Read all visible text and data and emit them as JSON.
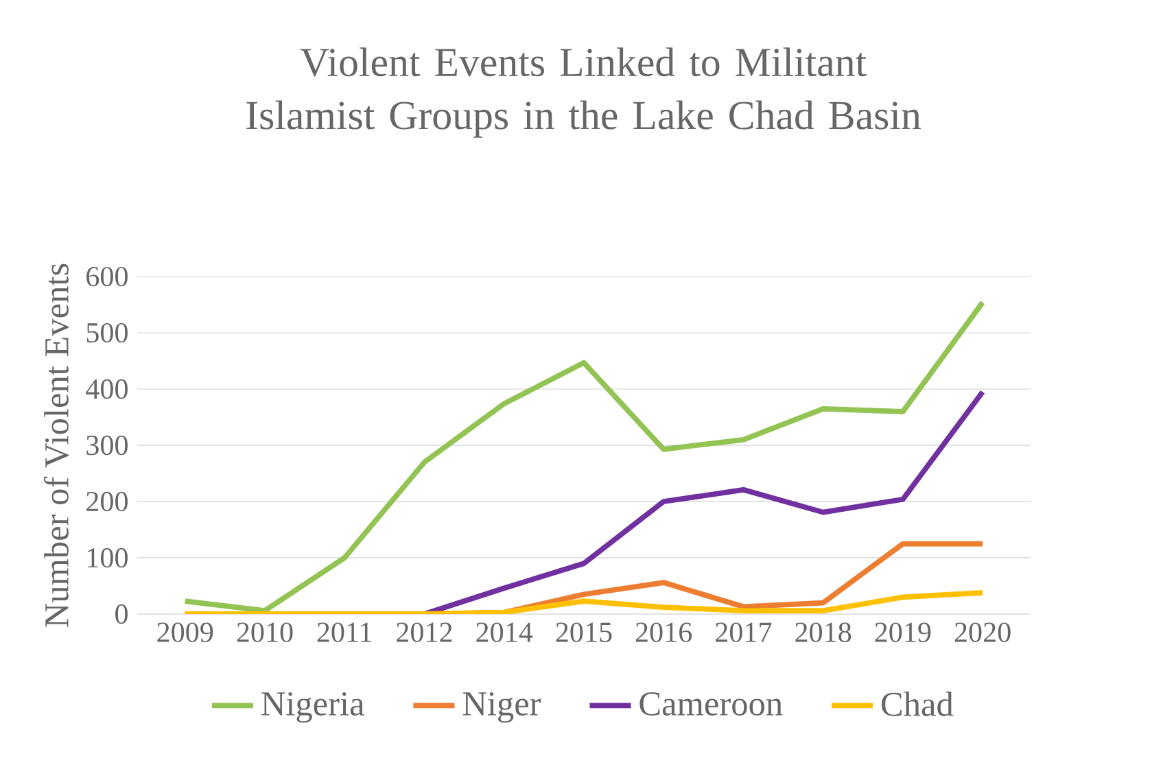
{
  "chart_data": {
    "type": "line",
    "title": "Violent Events Linked to Militant Islamist Groups in the Lake Chad Basin",
    "ylabel": "Number of Violent Events",
    "categories": [
      "2009",
      "2010",
      "2011",
      "2012",
      "2014",
      "2015",
      "2016",
      "2017",
      "2018",
      "2019",
      "2020"
    ],
    "series": [
      {
        "name": "Nigeria",
        "color": "#92c353",
        "values": [
          23,
          6,
          100,
          270,
          374,
          447,
          293,
          310,
          365,
          360,
          554
        ]
      },
      {
        "name": "Niger",
        "color": "#ed7d31",
        "values": [
          0,
          0,
          0,
          0,
          3,
          35,
          56,
          13,
          20,
          125,
          125
        ]
      },
      {
        "name": "Cameroon",
        "color": "#7030a0",
        "values": [
          null,
          null,
          null,
          0,
          46,
          90,
          200,
          221,
          181,
          204,
          395
        ]
      },
      {
        "name": "Chad",
        "color": "#ffc000",
        "values": [
          0,
          0,
          0,
          0,
          3,
          23,
          12,
          6,
          6,
          30,
          38
        ]
      }
    ],
    "ylim": [
      0,
      600
    ],
    "yticks": [
      0,
      100,
      200,
      300,
      400,
      500,
      600
    ],
    "grid": "y",
    "legend": "bottom",
    "marker": "none",
    "line_style": "solid"
  }
}
